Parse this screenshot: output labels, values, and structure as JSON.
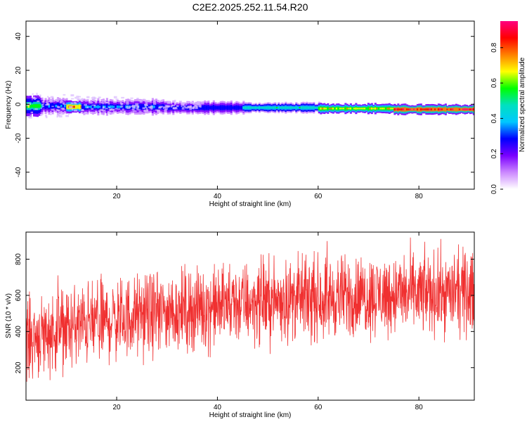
{
  "title": "C2E2.2025.252.11.54.R20",
  "chart_data": [
    {
      "type": "heatmap",
      "xlabel": "Height of straight line (km)",
      "ylabel": "Frequency (Hz)",
      "xlim": [
        2,
        91
      ],
      "ylim": [
        -50,
        49
      ],
      "xticks": [
        20,
        40,
        60,
        80
      ],
      "yticks": [
        -40,
        -20,
        0,
        20,
        40
      ],
      "colorbar": {
        "label": "Normalized spectral amplitude",
        "ticks": [
          "0.0",
          "0.2",
          "0.4",
          "0.6",
          "0.8"
        ],
        "tick_values": [
          0.0,
          0.2,
          0.4,
          0.6,
          0.8
        ],
        "range": [
          0,
          0.95
        ],
        "colors": [
          "#ffffff",
          "#cc88ff",
          "#7a00ff",
          "#0000ff",
          "#00c8ff",
          "#00e0c0",
          "#00ff00",
          "#ffff00",
          "#ff8000",
          "#ff0000",
          "#ff0080"
        ]
      },
      "bands": [
        {
          "x": [
            2,
            5
          ],
          "freq": -1,
          "width": 8,
          "amplitude": 0.6
        },
        {
          "x": [
            5,
            10
          ],
          "freq": -1,
          "width": 6,
          "amplitude": 0.35
        },
        {
          "x": [
            10,
            13
          ],
          "freq": -1.5,
          "width": 5,
          "amplitude": 0.8
        },
        {
          "x": [
            13,
            30
          ],
          "freq": -1.5,
          "width": 6,
          "amplitude": 0.35
        },
        {
          "x": [
            30,
            45
          ],
          "freq": -2,
          "width": 5,
          "amplitude": 0.3
        },
        {
          "x": [
            45,
            60
          ],
          "freq": -2,
          "width": 4,
          "amplitude": 0.5
        },
        {
          "x": [
            60,
            75
          ],
          "freq": -2.5,
          "width": 4,
          "amplitude": 0.7
        },
        {
          "x": [
            75,
            91
          ],
          "freq": -3,
          "width": 4,
          "amplitude": 0.9
        }
      ]
    },
    {
      "type": "line",
      "xlabel": "Height of straight line (km)",
      "ylabel": "SNR (10 * v/v)",
      "xlim": [
        2,
        91
      ],
      "ylim": [
        20,
        950
      ],
      "xticks": [
        20,
        40,
        60,
        80
      ],
      "yticks": [
        200,
        400,
        600,
        800
      ],
      "series": [
        {
          "color": "#f03030",
          "trend_x": [
            2,
            10,
            20,
            30,
            40,
            50,
            60,
            70,
            80,
            91
          ],
          "trend_y": [
            360,
            420,
            470,
            510,
            540,
            570,
            585,
            600,
            610,
            615
          ],
          "spread": 110
        }
      ]
    }
  ]
}
